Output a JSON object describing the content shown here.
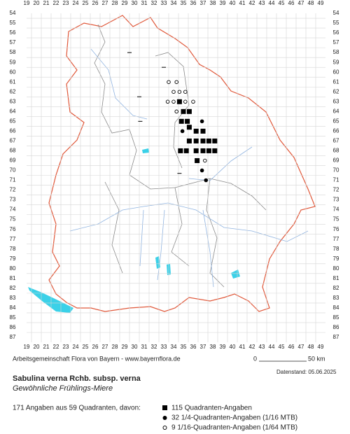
{
  "map": {
    "columns": [
      19,
      20,
      21,
      22,
      23,
      24,
      25,
      26,
      27,
      28,
      29,
      30,
      31,
      32,
      33,
      34,
      35,
      36,
      37,
      38,
      39,
      40,
      41,
      42,
      43,
      44,
      45,
      46,
      47,
      48,
      49
    ],
    "rows": [
      54,
      55,
      56,
      57,
      58,
      59,
      60,
      61,
      62,
      63,
      64,
      65,
      66,
      67,
      68,
      69,
      70,
      71,
      72,
      73,
      74,
      75,
      76,
      77,
      78,
      79,
      80,
      81,
      82,
      83,
      84,
      85,
      86,
      87
    ],
    "records": [
      {
        "col": 33.5,
        "row": 61,
        "symbol": "open"
      },
      {
        "col": 34.3,
        "row": 61,
        "symbol": "open"
      },
      {
        "col": 34,
        "row": 62,
        "symbol": "open"
      },
      {
        "col": 34.6,
        "row": 62,
        "symbol": "open"
      },
      {
        "col": 35.2,
        "row": 62,
        "symbol": "open"
      },
      {
        "col": 33.4,
        "row": 63,
        "symbol": "open"
      },
      {
        "col": 34,
        "row": 63,
        "symbol": "open"
      },
      {
        "col": 34.6,
        "row": 63,
        "symbol": "square"
      },
      {
        "col": 35.2,
        "row": 63,
        "symbol": "open"
      },
      {
        "col": 36,
        "row": 63,
        "symbol": "open"
      },
      {
        "col": 34.3,
        "row": 64,
        "symbol": "open"
      },
      {
        "col": 35,
        "row": 64,
        "symbol": "square"
      },
      {
        "col": 35.6,
        "row": 64,
        "symbol": "square"
      },
      {
        "col": 34.8,
        "row": 65,
        "symbol": "square"
      },
      {
        "col": 35.4,
        "row": 65,
        "symbol": "square"
      },
      {
        "col": 36.9,
        "row": 65,
        "symbol": "circle"
      },
      {
        "col": 35.6,
        "row": 65.6,
        "symbol": "square"
      },
      {
        "col": 34.9,
        "row": 66,
        "symbol": "circle"
      },
      {
        "col": 36.3,
        "row": 66,
        "symbol": "square"
      },
      {
        "col": 37,
        "row": 66,
        "symbol": "square"
      },
      {
        "col": 35.6,
        "row": 67,
        "symbol": "square"
      },
      {
        "col": 36.3,
        "row": 67,
        "symbol": "square"
      },
      {
        "col": 37,
        "row": 67,
        "symbol": "square"
      },
      {
        "col": 37.6,
        "row": 67,
        "symbol": "square"
      },
      {
        "col": 38.2,
        "row": 67,
        "symbol": "square"
      },
      {
        "col": 34.7,
        "row": 68,
        "symbol": "square"
      },
      {
        "col": 35.3,
        "row": 68,
        "symbol": "square"
      },
      {
        "col": 36.3,
        "row": 68,
        "symbol": "square"
      },
      {
        "col": 37,
        "row": 68,
        "symbol": "square"
      },
      {
        "col": 37.6,
        "row": 68,
        "symbol": "square"
      },
      {
        "col": 38.2,
        "row": 68,
        "symbol": "square"
      },
      {
        "col": 36.4,
        "row": 69,
        "symbol": "square"
      },
      {
        "col": 37.2,
        "row": 69,
        "symbol": "open"
      },
      {
        "col": 36.9,
        "row": 70,
        "symbol": "circle"
      },
      {
        "col": 37.3,
        "row": 71,
        "symbol": "circle"
      },
      {
        "col": 29.5,
        "row": 58,
        "symbol": "dash"
      },
      {
        "col": 30.5,
        "row": 62.5,
        "symbol": "dash"
      },
      {
        "col": 30.6,
        "row": 65,
        "symbol": "dash"
      },
      {
        "col": 33,
        "row": 59.5,
        "symbol": "dash"
      },
      {
        "col": 34.6,
        "row": 70.3,
        "symbol": "dash"
      }
    ]
  },
  "footer": {
    "credit": "Arbeitsgemeinschaft Flora von Bayern - www.bayernflora.de",
    "scale_start": "0",
    "scale_end": "50 km",
    "date": "Datenstand: 05.06.2025"
  },
  "species": {
    "name": "Sabulina verna Rchb. subsp. verna",
    "common_name": "Gewöhnliche Frühlings-Miere"
  },
  "summary": {
    "total": "171 Angaben aus 59 Quadranten, davon:",
    "items": [
      "115 Quadranten-Angaben",
      "32 1/4-Quadranten-Angaben (1/16 MTB)",
      "9 1/16-Quadranten-Angaben (1/64 MTB)"
    ]
  }
}
